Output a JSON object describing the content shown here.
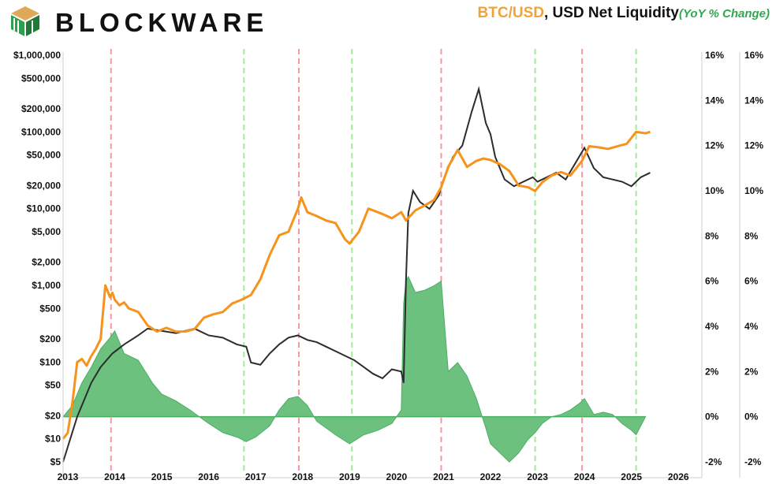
{
  "header": {
    "brand": "BLOCKWARE",
    "title_btc": "BTC/USD",
    "title_rest": ", USD Net Liquidity",
    "title_sub": "(YoY % Change)"
  },
  "chart_data": {
    "type": "line",
    "title": "BTC/USD, USD Net Liquidity (YoY % Change)",
    "x": {
      "min": 2012.9,
      "max": 2026.5,
      "tick_labels": [
        "2013",
        "2014",
        "2015",
        "2016",
        "2017",
        "2018",
        "2019",
        "2020",
        "2021",
        "2022",
        "2023",
        "2024",
        "2025",
        "2026"
      ]
    },
    "y_left": {
      "scale": "log",
      "min": 5,
      "max": 1000000,
      "tick_values": [
        1000000,
        500000,
        200000,
        100000,
        50000,
        20000,
        10000,
        5000,
        2000,
        1000,
        500,
        200,
        100,
        50,
        20,
        10,
        5
      ],
      "tick_labels": [
        "$1,000,000",
        "$500,000",
        "$200,000",
        "$100,000",
        "$50,000",
        "$20,000",
        "$10,000",
        "$5,000",
        "$2,000",
        "$1,000",
        "$500",
        "$200",
        "$100",
        "$50",
        "$20",
        "$10",
        "$5"
      ]
    },
    "y_right": {
      "min": -2,
      "max": 16,
      "tick_values": [
        16,
        14,
        12,
        10,
        8,
        6,
        4,
        2,
        0,
        -2
      ],
      "tick_labels": [
        "16%",
        "14%",
        "12%",
        "10%",
        "8%",
        "6%",
        "4%",
        "2%",
        "0%",
        "-2%"
      ]
    },
    "vertical_lines": {
      "red": [
        2013.92,
        2017.92,
        2020.95,
        2023.95
      ],
      "green": [
        2016.75,
        2019.05,
        2022.95,
        2025.1
      ]
    },
    "series": [
      {
        "name": "BTC/USD",
        "axis": "left",
        "color": "#f7931a",
        "x": [
          2012.9,
          2013.0,
          2013.1,
          2013.2,
          2013.3,
          2013.4,
          2013.5,
          2013.6,
          2013.7,
          2013.8,
          2013.9,
          2013.95,
          2014.0,
          2014.1,
          2014.2,
          2014.3,
          2014.5,
          2014.7,
          2014.9,
          2015.1,
          2015.3,
          2015.5,
          2015.7,
          2015.9,
          2016.1,
          2016.3,
          2016.5,
          2016.7,
          2016.9,
          2017.1,
          2017.3,
          2017.5,
          2017.7,
          2017.9,
          2017.97,
          2018.1,
          2018.3,
          2018.5,
          2018.7,
          2018.9,
          2019.0,
          2019.2,
          2019.4,
          2019.5,
          2019.7,
          2019.9,
          2020.1,
          2020.2,
          2020.4,
          2020.6,
          2020.8,
          2020.95,
          2021.1,
          2021.3,
          2021.5,
          2021.7,
          2021.85,
          2022.0,
          2022.2,
          2022.4,
          2022.6,
          2022.8,
          2022.95,
          2023.1,
          2023.3,
          2023.5,
          2023.7,
          2023.95,
          2024.1,
          2024.3,
          2024.5,
          2024.7,
          2024.9,
          2025.1,
          2025.3,
          2025.4
        ],
        "values": [
          10,
          12,
          30,
          100,
          110,
          90,
          120,
          150,
          200,
          1000,
          700,
          800,
          650,
          550,
          600,
          500,
          450,
          300,
          250,
          280,
          250,
          250,
          270,
          380,
          420,
          450,
          580,
          650,
          750,
          1200,
          2500,
          4500,
          5000,
          10000,
          14000,
          9000,
          8000,
          7000,
          6500,
          4000,
          3500,
          5000,
          10000,
          9500,
          8500,
          7500,
          9000,
          7000,
          9500,
          11000,
          13000,
          19000,
          35000,
          58000,
          35000,
          42000,
          45000,
          43000,
          38000,
          31000,
          20000,
          19000,
          17000,
          22000,
          27000,
          30000,
          27000,
          42000,
          65000,
          63000,
          60000,
          65000,
          70000,
          100000,
          96000,
          100000
        ]
      },
      {
        "name": "USD Net Liquidity (YoY % Change)",
        "axis": "right",
        "color": "#2c2c2c",
        "x": [
          2012.9,
          2013.2,
          2013.5,
          2013.7,
          2013.95,
          2014.2,
          2014.5,
          2014.7,
          2015.0,
          2015.3,
          2015.5,
          2015.7,
          2015.9,
          2016.0,
          2016.3,
          2016.6,
          2016.8,
          2016.9,
          2017.1,
          2017.3,
          2017.5,
          2017.7,
          2017.9,
          2018.1,
          2018.3,
          2018.5,
          2018.7,
          2018.9,
          2019.1,
          2019.3,
          2019.5,
          2019.7,
          2019.9,
          2020.1,
          2020.15,
          2020.2,
          2020.25,
          2020.35,
          2020.5,
          2020.7,
          2020.9,
          2021.0,
          2021.2,
          2021.4,
          2021.6,
          2021.75,
          2021.9,
          2022.0,
          2022.1,
          2022.3,
          2022.5,
          2022.7,
          2022.9,
          2023.0,
          2023.2,
          2023.4,
          2023.6,
          2023.8,
          2024.0,
          2024.2,
          2024.4,
          2024.6,
          2024.8,
          2025.0,
          2025.2,
          2025.4
        ],
        "values": [
          -2,
          0,
          1.5,
          2.2,
          2.8,
          3.2,
          3.6,
          3.9,
          3.8,
          3.7,
          3.8,
          3.9,
          3.7,
          3.6,
          3.5,
          3.2,
          3.1,
          2.4,
          2.3,
          2.8,
          3.2,
          3.5,
          3.6,
          3.4,
          3.3,
          3.1,
          2.9,
          2.7,
          2.5,
          2.2,
          1.9,
          1.7,
          2.1,
          2.0,
          1.5,
          6.0,
          9.0,
          10.0,
          9.5,
          9.2,
          9.8,
          10.5,
          11.5,
          12.0,
          13.5,
          14.5,
          13.0,
          12.5,
          11.5,
          10.5,
          10.2,
          10.4,
          10.6,
          10.4,
          10.6,
          10.8,
          10.5,
          11.2,
          11.9,
          11.0,
          10.6,
          10.5,
          10.4,
          10.2,
          10.6,
          10.8
        ]
      },
      {
        "name": "USD Net Liquidity YoY (area)",
        "axis": "right",
        "color": "#4caf64",
        "x": [
          2012.9,
          2013.1,
          2013.3,
          2013.5,
          2013.7,
          2013.9,
          2014.0,
          2014.2,
          2014.5,
          2014.8,
          2015.0,
          2015.3,
          2015.6,
          2016.0,
          2016.3,
          2016.6,
          2016.8,
          2017.0,
          2017.3,
          2017.5,
          2017.7,
          2017.9,
          2018.1,
          2018.3,
          2018.5,
          2018.7,
          2019.0,
          2019.3,
          2019.6,
          2019.9,
          2020.1,
          2020.15,
          2020.2,
          2020.25,
          2020.4,
          2020.6,
          2020.8,
          2020.95,
          2021.1,
          2021.3,
          2021.5,
          2021.7,
          2021.9,
          2022.0,
          2022.2,
          2022.4,
          2022.6,
          2022.8,
          2022.95,
          2023.1,
          2023.3,
          2023.5,
          2023.7,
          2023.9,
          2024.0,
          2024.2,
          2024.4,
          2024.6,
          2024.8,
          2025.0,
          2025.1,
          2025.2,
          2025.3
        ],
        "values": [
          0,
          0.5,
          1.5,
          2.2,
          3.0,
          3.5,
          3.8,
          2.8,
          2.5,
          1.5,
          1.0,
          0.7,
          0.3,
          -0.3,
          -0.7,
          -0.9,
          -1.1,
          -0.9,
          -0.4,
          0.3,
          0.8,
          0.9,
          0.5,
          -0.2,
          -0.5,
          -0.8,
          -1.2,
          -0.8,
          -0.6,
          -0.3,
          0.3,
          5.0,
          6.0,
          6.2,
          5.5,
          5.6,
          5.8,
          6.0,
          2.0,
          2.4,
          1.8,
          0.8,
          -0.5,
          -1.2,
          -1.6,
          -2.0,
          -1.6,
          -1.0,
          -0.7,
          -0.3,
          0.0,
          0.1,
          0.3,
          0.6,
          0.8,
          0.1,
          0.2,
          0.1,
          -0.3,
          -0.6,
          -0.8,
          -0.4,
          0.0
        ]
      }
    ]
  }
}
